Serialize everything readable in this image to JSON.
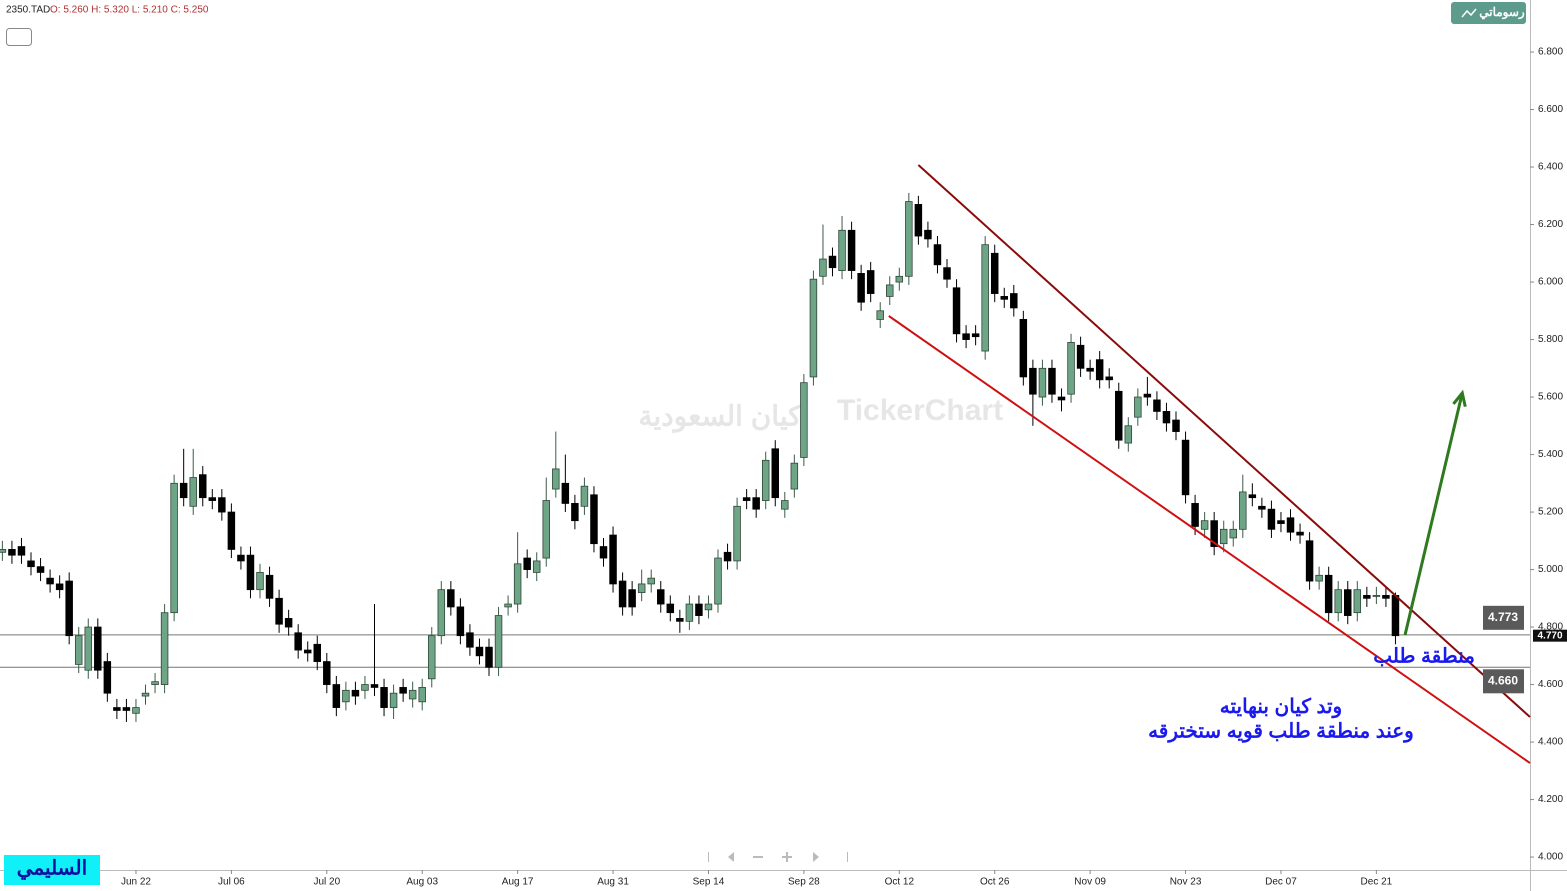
{
  "chart_data": {
    "type": "candlestick",
    "legend": {
      "symbol": "2350.TAD",
      "ohlc": "O: 5.260  H: 5.320  L: 5.210  C: 5.250"
    },
    "button": "رسوماتي",
    "author": "السليمي",
    "watermark": [
      "TickerChart",
      "كيان السعودية"
    ],
    "up_color": "#6fa587",
    "down_color": "#000000",
    "open": [
      5.06,
      5.07,
      5.08,
      5.03,
      5.01,
      4.97,
      4.95,
      4.96,
      4.67,
      4.65,
      4.8,
      4.68,
      4.52,
      4.52,
      4.5,
      4.56,
      4.6,
      4.6,
      4.85,
      5.3,
      5.22,
      5.33,
      5.25,
      5.25,
      5.2,
      5.05,
      5.05,
      4.93,
      4.98,
      4.9,
      4.83,
      4.78,
      4.72,
      4.74,
      4.68,
      4.6,
      4.54,
      4.58,
      4.58,
      4.6,
      4.59,
      4.52,
      4.59,
      4.55,
      4.54,
      4.62,
      4.77,
      4.93,
      4.87,
      4.78,
      4.73,
      4.73,
      4.66,
      4.87,
      4.88,
      5.04,
      4.99,
      5.04,
      5.28,
      5.3,
      5.23,
      5.22,
      5.26,
      5.08,
      5.12,
      4.96,
      4.93,
      4.92,
      4.95,
      4.93,
      4.88,
      4.83,
      4.82,
      4.88,
      4.86,
      4.88,
      5.06,
      5.03,
      5.25,
      5.25,
      5.24,
      5.42,
      5.21,
      5.28,
      5.39,
      5.67,
      6.02,
      6.09,
      6.04,
      6.18,
      6.03,
      6.04,
      5.87,
      5.95,
      6.0,
      6.02,
      6.27,
      6.18,
      6.13,
      6.05,
      5.98,
      5.82,
      5.82,
      5.76,
      6.1,
      5.95,
      5.96,
      5.87,
      5.7,
      5.6,
      5.7,
      5.6,
      5.61,
      5.78,
      5.7,
      5.73,
      5.67,
      5.62,
      5.44,
      5.53,
      5.61,
      5.59,
      5.55,
      5.52,
      5.45,
      5.23,
      5.14,
      5.17,
      5.09,
      5.11,
      5.14,
      5.26,
      5.22,
      5.21,
      5.17,
      5.18,
      5.13,
      5.1,
      4.96,
      4.98,
      4.85,
      4.93,
      4.85,
      4.91,
      4.91,
      4.91,
      4.91
    ],
    "high": [
      5.1,
      5.1,
      5.11,
      5.06,
      5.04,
      5.0,
      4.98,
      4.99,
      4.8,
      4.83,
      4.83,
      4.71,
      4.55,
      4.55,
      4.55,
      4.6,
      4.64,
      4.88,
      5.33,
      5.42,
      5.42,
      5.36,
      5.28,
      5.28,
      5.23,
      5.08,
      5.08,
      5.02,
      5.01,
      4.93,
      4.86,
      4.81,
      4.75,
      4.77,
      4.71,
      4.63,
      4.61,
      4.61,
      4.63,
      4.88,
      4.62,
      4.6,
      4.62,
      4.61,
      4.62,
      4.8,
      4.96,
      4.96,
      4.9,
      4.81,
      4.76,
      4.76,
      4.87,
      4.91,
      5.13,
      5.07,
      5.06,
      5.32,
      5.48,
      5.4,
      5.26,
      5.32,
      5.29,
      5.11,
      5.15,
      4.99,
      4.96,
      5.0,
      5.0,
      4.96,
      4.91,
      4.86,
      4.91,
      4.91,
      4.91,
      5.07,
      5.09,
      5.25,
      5.28,
      5.28,
      5.41,
      5.45,
      5.27,
      5.4,
      5.68,
      6.04,
      6.2,
      6.12,
      6.23,
      6.21,
      6.06,
      6.07,
      5.93,
      6.02,
      6.05,
      6.31,
      6.3,
      6.21,
      6.16,
      6.08,
      6.01,
      5.85,
      5.85,
      6.16,
      6.13,
      5.98,
      5.99,
      5.9,
      5.73,
      5.73,
      5.73,
      5.63,
      5.82,
      5.81,
      5.73,
      5.76,
      5.7,
      5.65,
      5.53,
      5.63,
      5.67,
      5.62,
      5.58,
      5.55,
      5.48,
      5.26,
      5.2,
      5.2,
      5.17,
      5.17,
      5.33,
      5.3,
      5.25,
      5.24,
      5.2,
      5.21,
      5.16,
      5.13,
      5.01,
      5.01,
      4.96,
      4.96,
      4.96,
      4.94,
      4.94,
      4.94,
      4.92
    ],
    "low": [
      5.03,
      5.02,
      5.02,
      4.98,
      4.96,
      4.92,
      4.9,
      4.74,
      4.64,
      4.62,
      4.62,
      4.54,
      4.48,
      4.47,
      4.47,
      4.53,
      4.57,
      4.57,
      4.82,
      5.22,
      5.19,
      5.22,
      5.21,
      5.17,
      5.04,
      5.0,
      4.9,
      4.9,
      4.87,
      4.78,
      4.77,
      4.69,
      4.68,
      4.65,
      4.57,
      4.49,
      4.51,
      4.53,
      4.55,
      4.56,
      4.49,
      4.48,
      4.54,
      4.52,
      4.51,
      4.59,
      4.74,
      4.84,
      4.74,
      4.7,
      4.67,
      4.63,
      4.63,
      4.84,
      4.85,
      4.97,
      4.96,
      5.01,
      5.25,
      5.2,
      5.14,
      5.19,
      5.06,
      5.01,
      4.92,
      4.84,
      4.84,
      4.89,
      4.92,
      4.85,
      4.82,
      4.78,
      4.79,
      4.81,
      4.83,
      4.85,
      5.0,
      5.0,
      5.21,
      5.18,
      5.21,
      5.22,
      5.18,
      5.25,
      5.36,
      5.64,
      5.99,
      6.02,
      6.01,
      6.01,
      5.9,
      5.93,
      5.84,
      5.92,
      5.97,
      5.99,
      6.13,
      6.12,
      6.03,
      5.98,
      5.79,
      5.77,
      5.78,
      5.73,
      5.93,
      5.91,
      5.88,
      5.64,
      5.5,
      5.57,
      5.58,
      5.55,
      5.58,
      5.67,
      5.66,
      5.63,
      5.63,
      5.42,
      5.41,
      5.5,
      5.57,
      5.52,
      5.48,
      5.45,
      5.23,
      5.12,
      5.11,
      5.05,
      5.06,
      5.08,
      5.11,
      5.22,
      5.18,
      5.11,
      5.13,
      5.1,
      5.09,
      4.93,
      4.93,
      4.82,
      4.82,
      4.81,
      4.82,
      4.87,
      4.88,
      4.87,
      4.74
    ],
    "close": [
      5.07,
      5.05,
      5.05,
      5.01,
      4.99,
      4.95,
      4.93,
      4.77,
      4.77,
      4.8,
      4.65,
      4.57,
      4.51,
      4.51,
      4.52,
      4.57,
      4.61,
      4.85,
      5.3,
      5.25,
      5.32,
      5.25,
      5.24,
      5.2,
      5.07,
      5.03,
      4.93,
      4.99,
      4.9,
      4.81,
      4.8,
      4.72,
      4.71,
      4.68,
      4.6,
      4.52,
      4.58,
      4.56,
      4.6,
      4.59,
      4.52,
      4.57,
      4.57,
      4.58,
      4.59,
      4.77,
      4.93,
      4.87,
      4.77,
      4.73,
      4.7,
      4.66,
      4.84,
      4.88,
      5.02,
      5.0,
      5.03,
      5.24,
      5.35,
      5.23,
      5.17,
      5.29,
      5.09,
      5.04,
      4.95,
      4.87,
      4.87,
      4.95,
      4.97,
      4.88,
      4.85,
      4.82,
      4.88,
      4.84,
      4.88,
      5.04,
      5.03,
      5.22,
      5.24,
      5.21,
      5.38,
      5.25,
      5.24,
      5.37,
      5.65,
      6.01,
      6.08,
      6.05,
      6.18,
      6.04,
      5.93,
      5.96,
      5.9,
      5.99,
      6.02,
      6.28,
      6.16,
      6.15,
      6.06,
      6.01,
      5.82,
      5.8,
      5.81,
      6.13,
      5.96,
      5.94,
      5.91,
      5.67,
      5.61,
      5.7,
      5.61,
      5.59,
      5.79,
      5.7,
      5.69,
      5.66,
      5.66,
      5.45,
      5.5,
      5.6,
      5.6,
      5.55,
      5.51,
      5.48,
      5.26,
      5.15,
      5.17,
      5.08,
      5.14,
      5.14,
      5.27,
      5.25,
      5.21,
      5.14,
      5.16,
      5.13,
      5.12,
      4.96,
      4.98,
      4.85,
      4.93,
      4.84,
      4.93,
      4.9,
      4.91,
      4.9,
      4.77
    ],
    "xlim": [
      -0.25,
      160.1
    ],
    "xticks": [
      {
        "value": 14,
        "label": "Jun 22"
      },
      {
        "value": 24,
        "label": "Jul 06"
      },
      {
        "value": 34,
        "label": "Jul 20"
      },
      {
        "value": 44,
        "label": "Aug 03"
      },
      {
        "value": 54,
        "label": "Aug 17"
      },
      {
        "value": 64,
        "label": "Aug 31"
      },
      {
        "value": 74,
        "label": "Sep 14"
      },
      {
        "value": 84,
        "label": "Sep 28"
      },
      {
        "value": 94,
        "label": "Oct 12"
      },
      {
        "value": 104,
        "label": "Oct 26"
      },
      {
        "value": 114,
        "label": "Nov 09"
      },
      {
        "value": 124,
        "label": "Nov 23"
      },
      {
        "value": 134,
        "label": "Dec 07"
      },
      {
        "value": 144,
        "label": "Dec 21"
      }
    ],
    "ylim": [
      3.955,
      6.981
    ],
    "yticks": [
      {
        "value": 4.0,
        "label": "4.000"
      },
      {
        "value": 4.2,
        "label": "4.200"
      },
      {
        "value": 4.4,
        "label": "4.400"
      },
      {
        "value": 4.6,
        "label": "4.600"
      },
      {
        "value": 4.8,
        "label": "4.800"
      },
      {
        "value": 5.0,
        "label": "5.000"
      },
      {
        "value": 5.2,
        "label": "5.200"
      },
      {
        "value": 5.4,
        "label": "5.400"
      },
      {
        "value": 5.6,
        "label": "5.600"
      },
      {
        "value": 5.8,
        "label": "5.800"
      },
      {
        "value": 6.0,
        "label": "6.000"
      },
      {
        "value": 6.2,
        "label": "6.200"
      },
      {
        "value": 6.4,
        "label": "6.400"
      },
      {
        "value": 6.6,
        "label": "6.600"
      },
      {
        "value": 6.8,
        "label": "6.800"
      }
    ],
    "levels": [
      {
        "value": 4.773,
        "label": "4.773"
      },
      {
        "value": 4.66,
        "label": "4.660"
      }
    ],
    "last_price": {
      "value": 4.77,
      "label": "4.770"
    },
    "lines": [
      {
        "color": "#8b0a0a",
        "points": [
          [
            96.0,
            6.407
          ],
          [
            160.1,
            4.487
          ]
        ]
      },
      {
        "color": "#d01010",
        "points": [
          [
            92.9,
            5.882
          ],
          [
            160.1,
            4.327
          ]
        ]
      },
      {
        "color": "#2f7a1f",
        "arrow": true,
        "points": [
          [
            147.0,
            4.772
          ],
          [
            153.0,
            5.614
          ]
        ]
      }
    ],
    "annotations": [
      {
        "text": "منطقة طلب",
        "x": 149.0,
        "y": 4.695
      },
      {
        "text": "وتد كيان بنهايته",
        "x": 134.0,
        "y": 4.52
      },
      {
        "text": "وعند منطقة طلب قويه ستخترقه",
        "x": 134.0,
        "y": 4.435
      }
    ]
  }
}
